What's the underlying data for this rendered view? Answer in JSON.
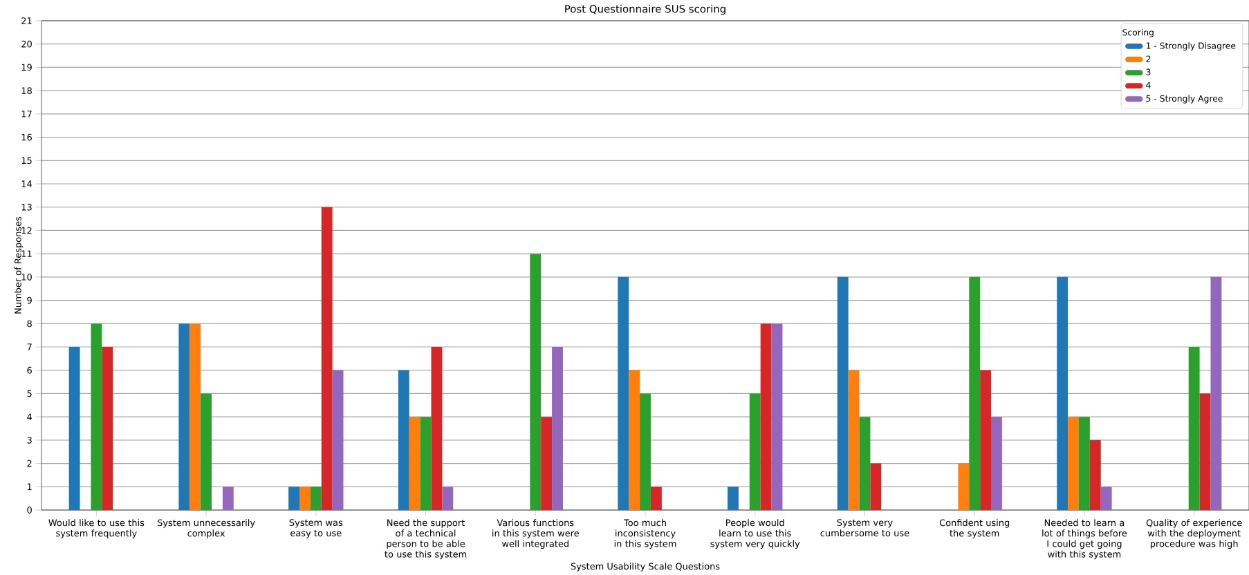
{
  "chart_data": {
    "type": "bar",
    "title": "Post Questionnaire SUS scoring",
    "xlabel": "System Usability Scale Questions",
    "ylabel": "Number of Responses",
    "legend_title": "Scoring",
    "categories": [
      "Would like to use this system frequently",
      "System unnecessarily complex",
      "System was easy to use",
      "Need the support of a technical person to be able to use this system",
      "Various functions in this system were well integrated",
      "Too much inconsistency in this system",
      "People would learn to use this system very quickly",
      "System very cumbersome to use",
      "Confident using the system",
      "Needed to learn a lot of things before I could get going with this system",
      "Quality of experience with the deployment procedure was high"
    ],
    "series": [
      {
        "name": "1 - Strongly Disagree",
        "color": "#1f77b4",
        "values": [
          7,
          8,
          1,
          6,
          0,
          10,
          1,
          10,
          0,
          10,
          0
        ]
      },
      {
        "name": "2",
        "color": "#ff7f0e",
        "values": [
          0,
          8,
          1,
          4,
          0,
          6,
          0,
          6,
          2,
          4,
          0
        ]
      },
      {
        "name": "3",
        "color": "#2ca02c",
        "values": [
          8,
          5,
          1,
          4,
          11,
          5,
          5,
          4,
          10,
          4,
          7
        ]
      },
      {
        "name": "4",
        "color": "#d62728",
        "values": [
          7,
          0,
          13,
          7,
          4,
          1,
          8,
          2,
          6,
          3,
          5
        ]
      },
      {
        "name": "5 - Strongly Agree",
        "color": "#9467bd",
        "values": [
          0,
          1,
          6,
          1,
          7,
          0,
          8,
          0,
          4,
          1,
          10
        ]
      }
    ],
    "ylim": [
      0,
      21
    ],
    "yticks": [
      0,
      1,
      2,
      3,
      4,
      5,
      6,
      7,
      8,
      9,
      10,
      11,
      12,
      13,
      14,
      15,
      16,
      17,
      18,
      19,
      20,
      21
    ],
    "grid": "y",
    "legend": "top right"
  }
}
